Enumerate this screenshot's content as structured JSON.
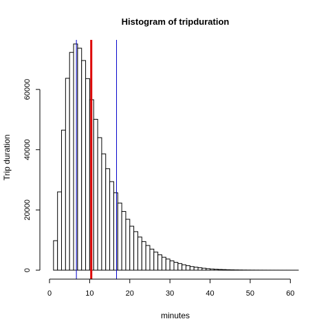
{
  "chart_data": {
    "type": "bar",
    "title": "Histogram of tripduration",
    "xlabel": "minutes",
    "ylabel": "Trip duration",
    "xlim": [
      0,
      62
    ],
    "ylim": [
      0,
      76000
    ],
    "bin_width": 1,
    "bin_start": 1,
    "values": [
      9800,
      26000,
      46500,
      63700,
      72300,
      75100,
      73700,
      69600,
      63600,
      56600,
      50100,
      44000,
      38600,
      33700,
      29400,
      25700,
      22300,
      19500,
      16900,
      14600,
      12800,
      11000,
      9500,
      8200,
      7000,
      6000,
      5100,
      4300,
      3700,
      3100,
      2600,
      2200,
      1800,
      1500,
      1200,
      1000,
      800,
      650,
      500,
      400,
      320,
      250,
      200,
      150,
      120,
      90,
      70,
      50,
      40,
      30,
      25,
      20,
      15,
      12,
      10,
      8,
      6,
      5,
      4,
      3,
      2
    ],
    "x_ticks": [
      "0",
      "10",
      "20",
      "30",
      "40",
      "50",
      "60"
    ],
    "y_ticks": [
      "0",
      "20000",
      "40000",
      "60000"
    ],
    "vlines": [
      {
        "x": 6.7,
        "color": "#0000cc",
        "width": 1
      },
      {
        "x": 10.4,
        "color": "#dd0000",
        "width": 3
      },
      {
        "x": 16.7,
        "color": "#0000cc",
        "width": 1
      }
    ]
  }
}
